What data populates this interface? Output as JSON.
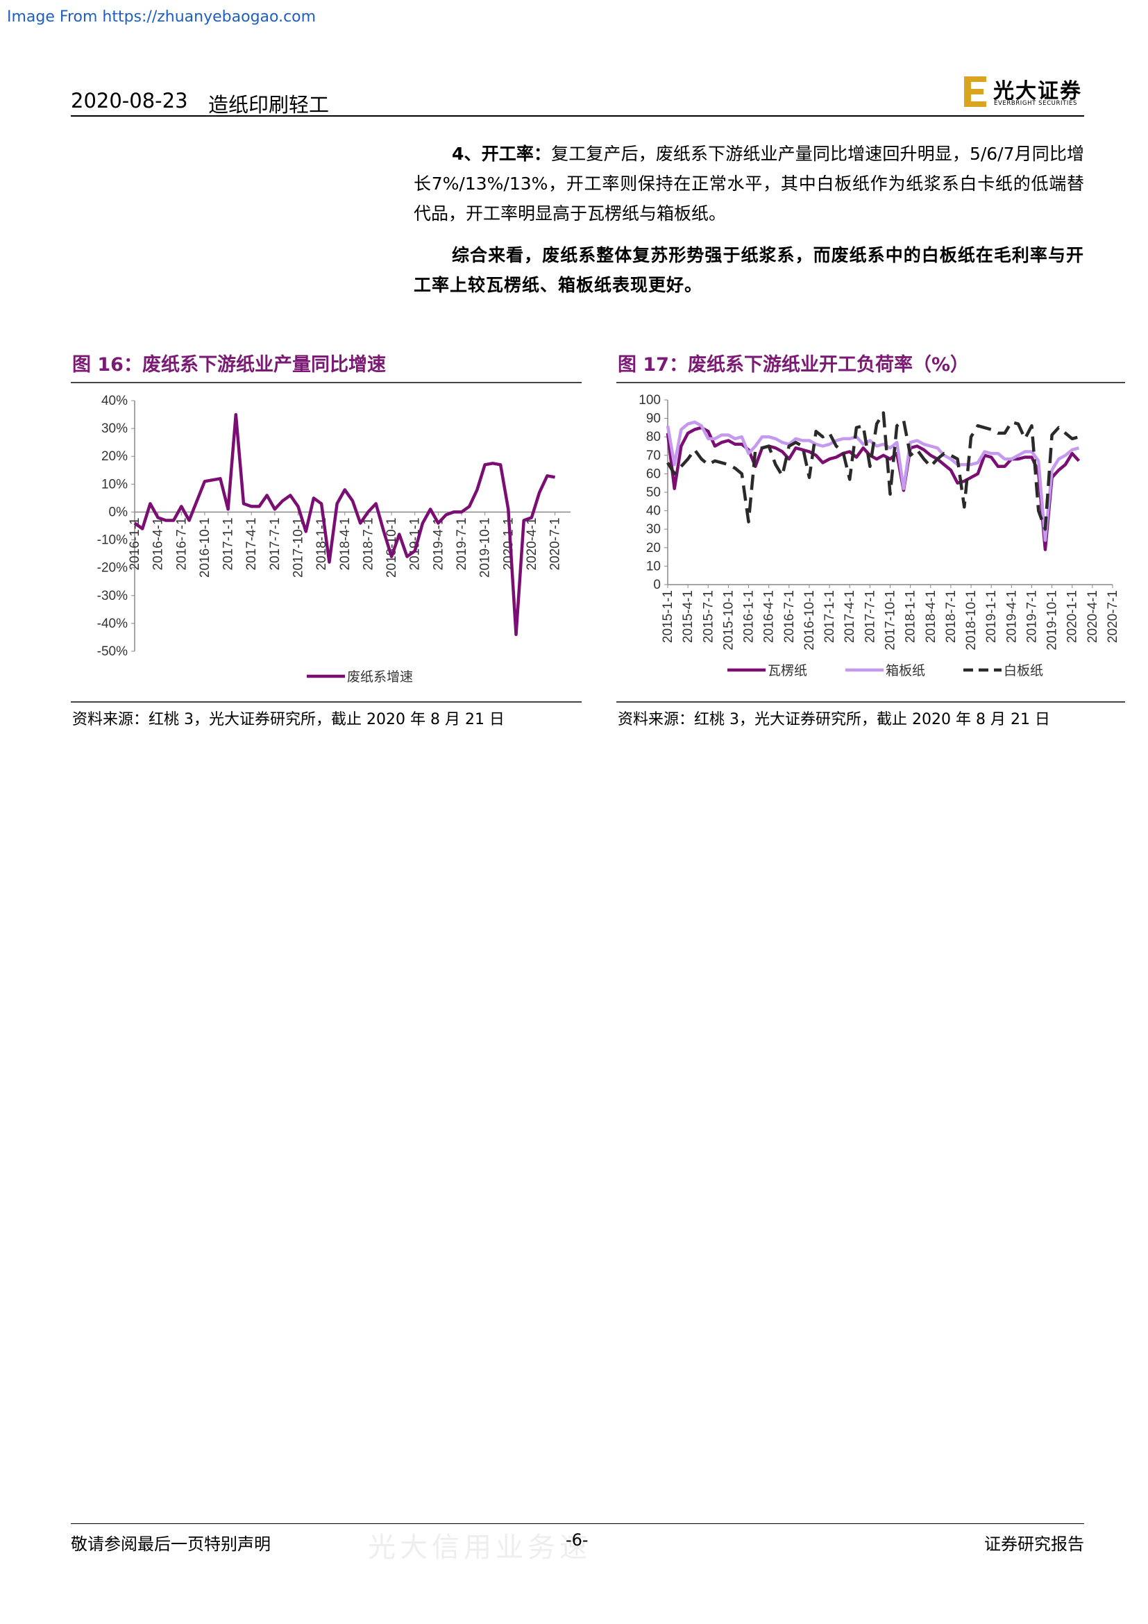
{
  "watermark_top": "Image From https://zhuanyebaogao.com",
  "header": {
    "date": "2020-08-23",
    "industry": "造纸印刷轻工",
    "logo_cn": "光大证券",
    "logo_en": "EVERBRIGHT SECURITIES"
  },
  "paragraph1": {
    "lead": "4、开工率：",
    "body": "复工复产后，废纸系下游纸业产量同比增速回升明显，5/6/7月同比增长7%/13%/13%，开工率则保持在正常水平，其中白板纸作为纸浆系白卡纸的低端替代品，开工率明显高于瓦楞纸与箱板纸。"
  },
  "paragraph2": "综合来看，废纸系整体复苏形势强于纸浆系，而废纸系中的白板纸在毛利率与开工率上较瓦楞纸、箱板纸表现更好。",
  "figures": {
    "fig16_title": "图 16：废纸系下游纸业产量同比增速",
    "fig17_title": "图 17：废纸系下游纸业开工负荷率（%）",
    "fig16_source": "资料来源：红桃 3，光大证券研究所，截止 2020 年 8 月 21 日",
    "fig17_source": "资料来源：红桃 3，光大证券研究所，截止 2020 年 8 月 21 日"
  },
  "chart_data": [
    {
      "type": "line",
      "title": "图 16：废纸系下游纸业产量同比增速",
      "y_ticks": [
        "40%",
        "30%",
        "20%",
        "10%",
        "0%",
        "-10%",
        "-20%",
        "-30%",
        "-40%",
        "-50%"
      ],
      "ylim": [
        -50,
        40
      ],
      "x_ticks": [
        "2016-1-1",
        "2016-4-1",
        "2016-7-1",
        "2016-10-1",
        "2017-1-1",
        "2017-4-1",
        "2017-7-1",
        "2017-10-1",
        "2018-1-1",
        "2018-4-1",
        "2018-7-1",
        "2018-10-1",
        "2019-1-1",
        "2019-4-1",
        "2019-7-1",
        "2019-10-1",
        "2020-1-1",
        "2020-4-1",
        "2020-7-1"
      ],
      "x_start": "2016-01",
      "legend": "bottom",
      "series": [
        {
          "name": "废纸系增速",
          "color": "#7b0e73",
          "values": [
            -4,
            -6,
            3,
            -2,
            -3,
            -3,
            2,
            -3,
            4,
            11,
            11.5,
            12,
            1,
            35,
            3,
            2,
            2,
            6,
            1,
            4,
            6,
            2,
            -7,
            5,
            3,
            -18,
            3,
            8,
            4,
            -4,
            0,
            3,
            -7,
            -16,
            -8,
            -16,
            -14,
            -4,
            1,
            -4,
            -1,
            0,
            0,
            2,
            8,
            17,
            17.5,
            17,
            1,
            -44,
            -3,
            -2,
            7,
            13,
            12.5
          ]
        }
      ]
    },
    {
      "type": "line",
      "title": "图 17：废纸系下游纸业开工负荷率（%）",
      "y_ticks": [
        "100",
        "90",
        "80",
        "70",
        "60",
        "50",
        "40",
        "30",
        "20",
        "10",
        "0"
      ],
      "ylim": [
        0,
        100
      ],
      "x_ticks": [
        "2015-1-1",
        "2015-4-1",
        "2015-7-1",
        "2015-10-1",
        "2016-1-1",
        "2016-4-1",
        "2016-7-1",
        "2016-10-1",
        "2017-1-1",
        "2017-4-1",
        "2017-7-1",
        "2017-10-1",
        "2018-1-1",
        "2018-4-1",
        "2018-7-1",
        "2018-10-1",
        "2019-1-1",
        "2019-4-1",
        "2019-7-1",
        "2019-10-1",
        "2020-1-1",
        "2020-4-1",
        "2020-7-1"
      ],
      "x_start": "2015-01",
      "legend": "bottom",
      "series": [
        {
          "name": "瓦楞纸",
          "color": "#7b0e73",
          "dash": "solid",
          "values": [
            82,
            52,
            75,
            82,
            84,
            85,
            83,
            75,
            77,
            78,
            76,
            76,
            73,
            64,
            74,
            75,
            74,
            72,
            68,
            74,
            73,
            72,
            70,
            66,
            68,
            69,
            71,
            72,
            69,
            74,
            70,
            68,
            70,
            68,
            71,
            51,
            74,
            75,
            73,
            70,
            68,
            65,
            62,
            55,
            56,
            58,
            60,
            70,
            69,
            64,
            64,
            68,
            68,
            69,
            69,
            61,
            19,
            58,
            62,
            65,
            71,
            67
          ]
        },
        {
          "name": "箱板纸",
          "color": "#c59aee",
          "dash": "solid",
          "values": [
            86,
            65,
            84,
            87,
            88,
            86,
            79,
            79,
            81,
            81,
            79,
            80,
            71,
            75,
            80,
            80,
            79,
            77,
            76,
            79,
            78,
            78,
            76,
            75,
            76,
            78,
            79,
            79,
            80,
            76,
            78,
            75,
            76,
            74,
            77,
            52,
            77,
            78,
            76,
            75,
            74,
            70,
            68,
            65,
            65,
            65,
            66,
            72,
            71,
            71,
            68,
            68,
            70,
            72,
            72,
            67,
            24,
            62,
            68,
            70,
            73,
            74
          ]
        },
        {
          "name": "白板纸",
          "color": "#2a2a2a",
          "dash": "dashed",
          "values": [
            66,
            60,
            64,
            68,
            73,
            68,
            65,
            67,
            66,
            65,
            63,
            60,
            34,
            73,
            74,
            75,
            65,
            59,
            75,
            77,
            75,
            58,
            83,
            80,
            82,
            75,
            72,
            57,
            85,
            86,
            64,
            87,
            93,
            49,
            86,
            89,
            70,
            73,
            68,
            64,
            68,
            71,
            70,
            68,
            42,
            80,
            86,
            85,
            84,
            82,
            82,
            88,
            87,
            79,
            86,
            40,
            30,
            81,
            85,
            82,
            79,
            80
          ]
        }
      ]
    }
  ],
  "footer": {
    "left": "敬请参阅最后一页特别声明",
    "page": "-6-",
    "right": "证券研究报告",
    "watermark": "光大信用业务速"
  }
}
